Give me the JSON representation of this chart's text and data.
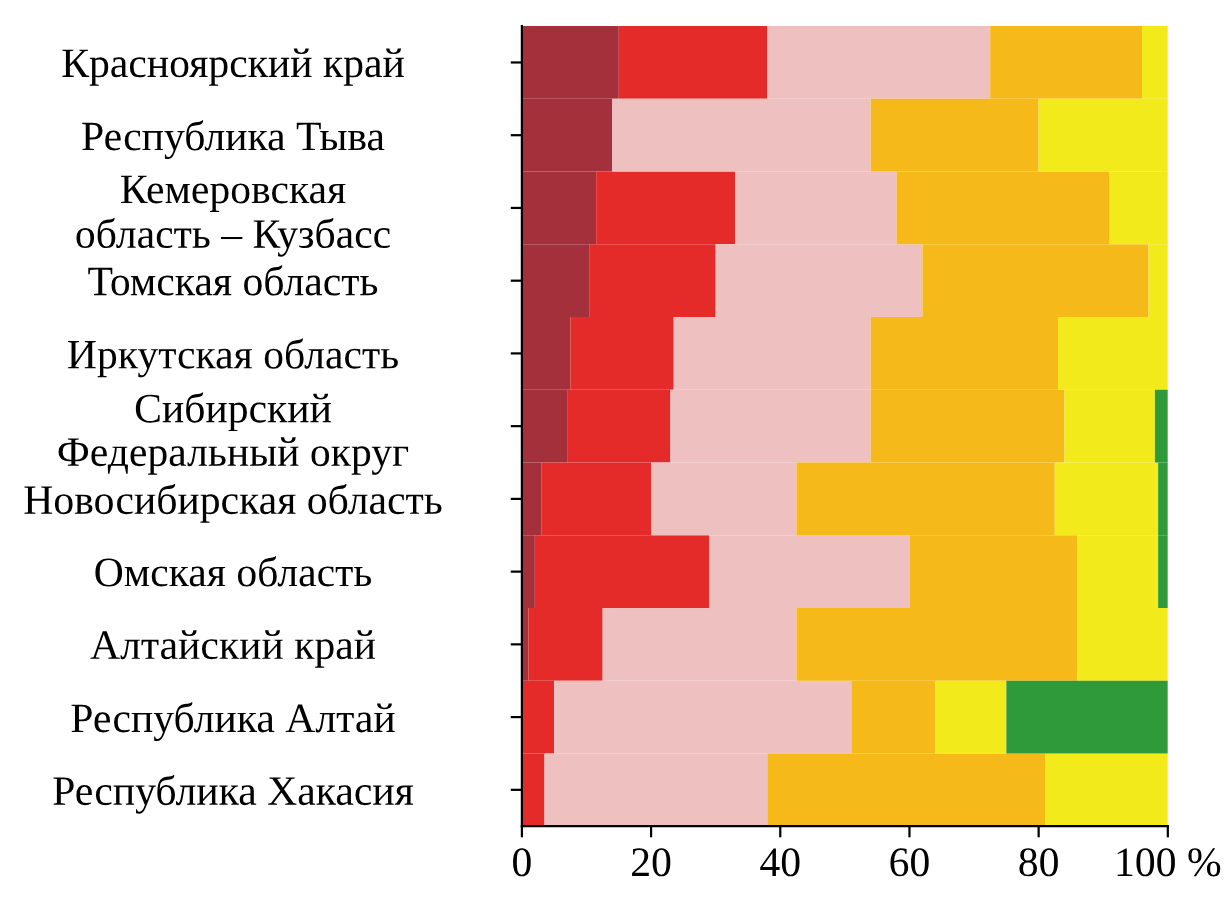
{
  "chart_data": {
    "type": "bar",
    "orientation": "horizontal",
    "stacked": true,
    "categories": [
      "Красноярский край",
      "Республика Тыва",
      "Кемеровская\nобласть – Кузбасс",
      "Томская область",
      "Иркутская область",
      "Сибирский\nФедеральный округ",
      "Новосибирская область",
      "Омская область",
      "Алтайский край",
      "Республика Алтай",
      "Республика Хакасия"
    ],
    "series": [
      {
        "color": "#a3303a",
        "values": [
          15,
          14,
          11.5,
          10.5,
          7.5,
          7,
          3,
          2,
          1,
          0,
          0
        ]
      },
      {
        "color": "#e52a2a",
        "values": [
          23,
          0,
          21.5,
          19.5,
          16,
          16,
          17,
          27,
          11.5,
          5,
          3.5
        ]
      },
      {
        "color": "#eec0c0",
        "values": [
          34.5,
          40,
          25,
          32,
          30.5,
          31,
          22.5,
          31,
          30,
          46,
          34.5
        ]
      },
      {
        "color": "#f5ba1a",
        "values": [
          23.5,
          26,
          33,
          35,
          29,
          30,
          40,
          26,
          43.5,
          13,
          43
        ]
      },
      {
        "color": "#f2ea1a",
        "values": [
          4,
          20,
          9,
          3,
          17,
          14,
          16,
          12.5,
          14,
          11,
          19
        ]
      },
      {
        "color": "#2f9a3a",
        "values": [
          0,
          0,
          0,
          0,
          0,
          2,
          1.5,
          1.5,
          0,
          25,
          0
        ]
      }
    ],
    "xlim": [
      0,
      100
    ],
    "xticks": [
      0,
      20,
      40,
      60,
      80,
      {
        "value": 100,
        "label": "100 %"
      }
    ],
    "grid": false,
    "legend": false
  }
}
